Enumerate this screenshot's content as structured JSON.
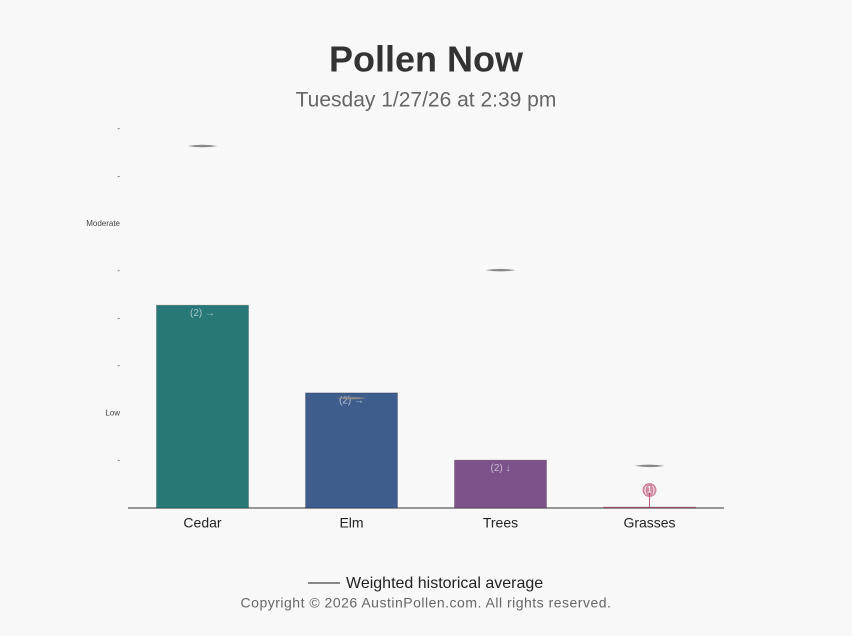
{
  "chart_data": {
    "type": "bar",
    "title": "Pollen Now",
    "subtitle": "Tuesday 1/27/26 at 2:39 pm",
    "categories": [
      "Cedar",
      "Elm",
      "Trees",
      "Grasses"
    ],
    "values": [
      4.28,
      2.43,
      1.01,
      0.02
    ],
    "colors": [
      "#277876",
      "#3e5d8c",
      "#7b528a",
      "#c0587a"
    ],
    "annotations": [
      "(2) →",
      "(2) →",
      "(2) ↓",
      "(1)"
    ],
    "historical_average": {
      "name": "Weighted historical average",
      "color": "#888888",
      "values": [
        7.64,
        2.32,
        5.02,
        0.89
      ]
    },
    "ylim": [
      0,
      8
    ],
    "yticks": [
      {
        "value": 1,
        "label": "-"
      },
      {
        "value": 2,
        "label": "Low"
      },
      {
        "value": 3,
        "label": "-"
      },
      {
        "value": 4,
        "label": "-"
      },
      {
        "value": 5,
        "label": "-"
      },
      {
        "value": 6,
        "label": "Moderate"
      },
      {
        "value": 7,
        "label": "-"
      },
      {
        "value": 8,
        "label": "-"
      }
    ],
    "footer": "Copyright © 2026 AustinPollen.com.  All rights reserved."
  }
}
